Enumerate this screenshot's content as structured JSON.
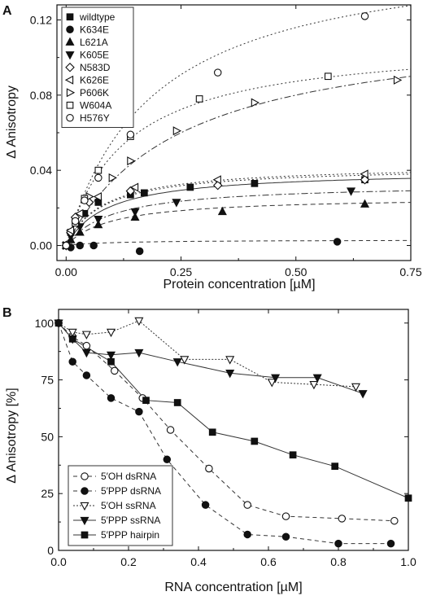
{
  "chart_data": [
    {
      "panel": "A",
      "type": "scatter",
      "xlabel": "Protein concentration [µM]",
      "ylabel": "Δ Anisotropy",
      "xlim": [
        -0.02,
        0.75
      ],
      "ylim": [
        -0.008,
        0.128
      ],
      "xticks": [
        0.0,
        0.25,
        0.5,
        0.75
      ],
      "xtick_labels": [
        "0.00",
        "0.25",
        "0.50",
        "0.75"
      ],
      "yticks": [
        0.0,
        0.04,
        0.08,
        0.12
      ],
      "ytick_labels": [
        "0.00",
        "0.04",
        "0.08",
        "0.12"
      ],
      "legend_position": "top-left",
      "series": [
        {
          "name": "wildtype",
          "marker": "square-filled",
          "bmax": 0.04,
          "kd": 0.09,
          "dash": "",
          "x": [
            0.0,
            0.01,
            0.02,
            0.04,
            0.07,
            0.14,
            0.17,
            0.27,
            0.41,
            0.65
          ],
          "y": [
            0.0,
            0.007,
            0.013,
            0.017,
            0.023,
            0.027,
            0.028,
            0.031,
            0.033,
            0.035
          ]
        },
        {
          "name": "K634E",
          "marker": "circle-filled",
          "bmax": 0.003,
          "kd": 0.1,
          "dash": "5,4",
          "x": [
            0.0,
            0.01,
            0.03,
            0.06,
            0.16,
            0.59
          ],
          "y": [
            0.0,
            -0.001,
            0.0,
            0.0,
            -0.003,
            0.002
          ]
        },
        {
          "name": "L621A",
          "marker": "triangle-up-filled",
          "bmax": 0.026,
          "kd": 0.1,
          "dash": "6,4",
          "x": [
            0.0,
            0.01,
            0.03,
            0.07,
            0.15,
            0.34,
            0.65
          ],
          "y": [
            0.0,
            0.003,
            0.007,
            0.011,
            0.015,
            0.018,
            0.022
          ]
        },
        {
          "name": "K605E",
          "marker": "triangle-down-filled",
          "bmax": 0.033,
          "kd": 0.1,
          "dash": "8,3,2,3",
          "x": [
            0.0,
            0.01,
            0.03,
            0.07,
            0.15,
            0.24,
            0.62
          ],
          "y": [
            0.0,
            0.005,
            0.01,
            0.014,
            0.018,
            0.023,
            0.029
          ]
        },
        {
          "name": "N583D",
          "marker": "diamond-open",
          "bmax": 0.042,
          "kd": 0.08,
          "dash": "2,3",
          "x": [
            0.0,
            0.01,
            0.02,
            0.05,
            0.14,
            0.33,
            0.65
          ],
          "y": [
            0.0,
            0.007,
            0.015,
            0.023,
            0.029,
            0.032,
            0.035
          ]
        },
        {
          "name": "K626E",
          "marker": "triangle-left-open",
          "bmax": 0.043,
          "kd": 0.08,
          "dash": "2,3",
          "x": [
            0.0,
            0.01,
            0.03,
            0.07,
            0.15,
            0.33,
            0.65
          ],
          "y": [
            0.0,
            0.008,
            0.017,
            0.026,
            0.031,
            0.035,
            0.038
          ]
        },
        {
          "name": "P606K",
          "marker": "triangle-right-open",
          "bmax": 0.12,
          "kd": 0.25,
          "dash": "8,3,2,3",
          "x": [
            0.0,
            0.02,
            0.05,
            0.1,
            0.14,
            0.24,
            0.41,
            0.72
          ],
          "y": [
            0.0,
            0.012,
            0.026,
            0.036,
            0.045,
            0.061,
            0.076,
            0.088
          ]
        },
        {
          "name": "W604A",
          "marker": "square-open",
          "bmax": 0.11,
          "kd": 0.13,
          "dash": "2,3",
          "x": [
            0.0,
            0.02,
            0.04,
            0.07,
            0.14,
            0.29,
            0.57
          ],
          "y": [
            0.0,
            0.012,
            0.025,
            0.04,
            0.058,
            0.078,
            0.09
          ]
        },
        {
          "name": "H576Y",
          "marker": "circle-open",
          "bmax": 0.16,
          "kd": 0.19,
          "dash": "2,3",
          "x": [
            0.0,
            0.02,
            0.04,
            0.07,
            0.14,
            0.33,
            0.65
          ],
          "y": [
            0.0,
            0.013,
            0.024,
            0.036,
            0.059,
            0.092,
            0.122
          ]
        }
      ]
    },
    {
      "panel": "B",
      "type": "line",
      "xlabel": "RNA concentration [µM]",
      "ylabel": "Δ Anisotropy [%]",
      "xlim": [
        0.0,
        1.0
      ],
      "ylim": [
        0,
        106
      ],
      "xticks": [
        0.0,
        0.2,
        0.4,
        0.6,
        0.8,
        1.0
      ],
      "xtick_labels": [
        "0.0",
        "0.2",
        "0.4",
        "0.6",
        "0.8",
        "1.0"
      ],
      "yticks": [
        0,
        25,
        50,
        75,
        100
      ],
      "ytick_labels": [
        "0",
        "25",
        "50",
        "75",
        "100"
      ],
      "legend_position": "bottom-left",
      "series": [
        {
          "name": "5′OH  dsRNA",
          "marker": "circle-open",
          "dash": "5,4",
          "x": [
            0.0,
            0.04,
            0.08,
            0.16,
            0.24,
            0.32,
            0.43,
            0.54,
            0.65,
            0.81,
            0.96
          ],
          "y": [
            100,
            94,
            90,
            79,
            67,
            53,
            36,
            20,
            15,
            14,
            13
          ]
        },
        {
          "name": "5′PPP dsRNA",
          "marker": "circle-filled",
          "dash": "5,4",
          "x": [
            0.0,
            0.04,
            0.08,
            0.15,
            0.23,
            0.31,
            0.42,
            0.54,
            0.65,
            0.8,
            0.95
          ],
          "y": [
            100,
            83,
            77,
            67,
            61,
            40,
            20,
            7,
            6,
            3,
            3
          ]
        },
        {
          "name": "5′OH  ssRNA",
          "marker": "triangle-down-open",
          "dash": "2,2",
          "x": [
            0.0,
            0.04,
            0.08,
            0.15,
            0.23,
            0.36,
            0.49,
            0.61,
            0.73,
            0.85
          ],
          "y": [
            100,
            96,
            95,
            96,
            101,
            84,
            84,
            74,
            73,
            72
          ]
        },
        {
          "name": "5′PPP ssRNA",
          "marker": "triangle-down-filled",
          "dash": "",
          "x": [
            0.0,
            0.04,
            0.08,
            0.15,
            0.23,
            0.34,
            0.49,
            0.62,
            0.74,
            0.87
          ],
          "y": [
            100,
            93,
            87,
            86,
            87,
            83,
            78,
            76,
            76,
            69
          ]
        },
        {
          "name": "5′PPP hairpin",
          "marker": "square-filled",
          "dash": "",
          "x": [
            0.0,
            0.04,
            0.15,
            0.25,
            0.34,
            0.44,
            0.56,
            0.67,
            0.79,
            1.0
          ],
          "y": [
            100,
            93,
            83,
            66,
            65,
            52,
            48,
            42,
            37,
            23
          ]
        }
      ]
    }
  ]
}
